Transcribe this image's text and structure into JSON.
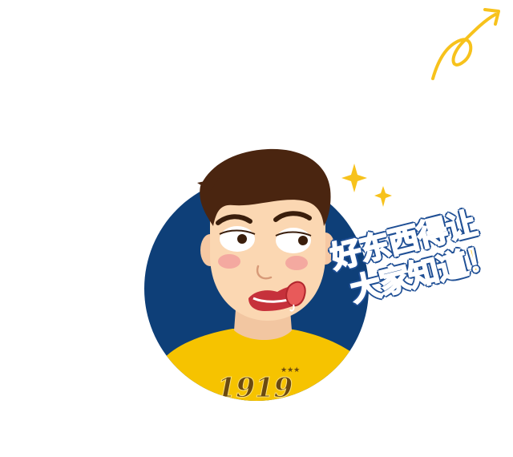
{
  "caption": {
    "line1": "好东西得让",
    "line2": "大家知道！"
  },
  "shirt": {
    "number": "1919"
  },
  "colors": {
    "circle_bg": "#0e3f78",
    "shirt": "#f6c300",
    "hair": "#4a2510",
    "skin": "#fbd7b2",
    "accent_yellow": "#f7c21c",
    "text_outline": "#1f4f95"
  },
  "icons": [
    "sparkle-icon",
    "curly-arrow-icon"
  ]
}
